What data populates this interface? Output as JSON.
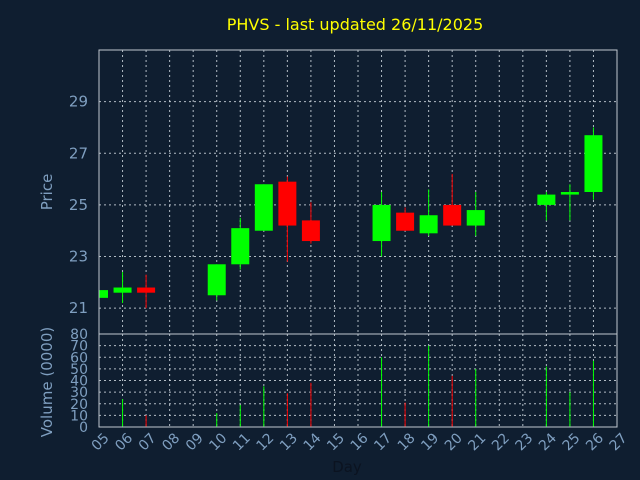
{
  "chart_data": {
    "type": "candlestick",
    "title": "PHVS - last updated 26/11/2025",
    "xlabel": "Day",
    "ylabel_price": "Price",
    "ylabel_volume": "Volume (0000)",
    "price_ylim": [
      20,
      31
    ],
    "price_ticks": [
      "21",
      "23",
      "25",
      "27",
      "29"
    ],
    "volume_ylim": [
      0,
      80
    ],
    "volume_ticks": [
      "0",
      "10",
      "20",
      "30",
      "40",
      "50",
      "60",
      "70",
      "80"
    ],
    "x_ticks": [
      "05",
      "06",
      "07",
      "08",
      "09",
      "10",
      "11",
      "12",
      "13",
      "14",
      "15",
      "16",
      "17",
      "18",
      "19",
      "20",
      "21",
      "22",
      "23",
      "24",
      "25",
      "26",
      "27"
    ],
    "colors": {
      "up": "#00ff00",
      "down": "#ff0000",
      "title": "#ffff00",
      "axis_text": "#7f9fc0"
    },
    "candles": [
      {
        "day": "05",
        "open": 21.4,
        "high": 21.7,
        "low": 21.4,
        "close": 21.7,
        "volume": 0
      },
      {
        "day": "06",
        "open": 21.6,
        "high": 22.4,
        "low": 21.2,
        "close": 21.8,
        "volume": 24
      },
      {
        "day": "07",
        "open": 21.8,
        "high": 22.3,
        "low": 21.0,
        "close": 21.6,
        "volume": 10
      },
      {
        "day": "10",
        "open": 21.5,
        "high": 22.7,
        "low": 21.3,
        "close": 22.7,
        "volume": 12
      },
      {
        "day": "11",
        "open": 22.7,
        "high": 24.5,
        "low": 22.5,
        "close": 24.1,
        "volume": 19
      },
      {
        "day": "12",
        "open": 24.0,
        "high": 25.8,
        "low": 24.0,
        "close": 25.8,
        "volume": 35
      },
      {
        "day": "13",
        "open": 25.9,
        "high": 26.1,
        "low": 22.8,
        "close": 24.2,
        "volume": 29
      },
      {
        "day": "14",
        "open": 24.4,
        "high": 25.1,
        "low": 23.5,
        "close": 23.6,
        "volume": 38
      },
      {
        "day": "17",
        "open": 23.6,
        "high": 25.5,
        "low": 23.0,
        "close": 25.0,
        "volume": 60
      },
      {
        "day": "18",
        "open": 24.7,
        "high": 24.9,
        "low": 24.0,
        "close": 24.0,
        "volume": 21
      },
      {
        "day": "19",
        "open": 23.9,
        "high": 25.6,
        "low": 23.8,
        "close": 24.6,
        "volume": 70
      },
      {
        "day": "20",
        "open": 25.0,
        "high": 26.2,
        "low": 24.2,
        "close": 24.2,
        "volume": 44
      },
      {
        "day": "21",
        "open": 24.2,
        "high": 25.5,
        "low": 23.8,
        "close": 24.8,
        "volume": 50
      },
      {
        "day": "24",
        "open": 25.0,
        "high": 25.5,
        "low": 24.4,
        "close": 25.4,
        "volume": 52
      },
      {
        "day": "25",
        "open": 25.4,
        "high": 25.8,
        "low": 24.4,
        "close": 25.5,
        "volume": 30
      },
      {
        "day": "26",
        "open": 25.5,
        "high": 28.0,
        "low": 25.2,
        "close": 27.7,
        "volume": 57
      }
    ]
  }
}
